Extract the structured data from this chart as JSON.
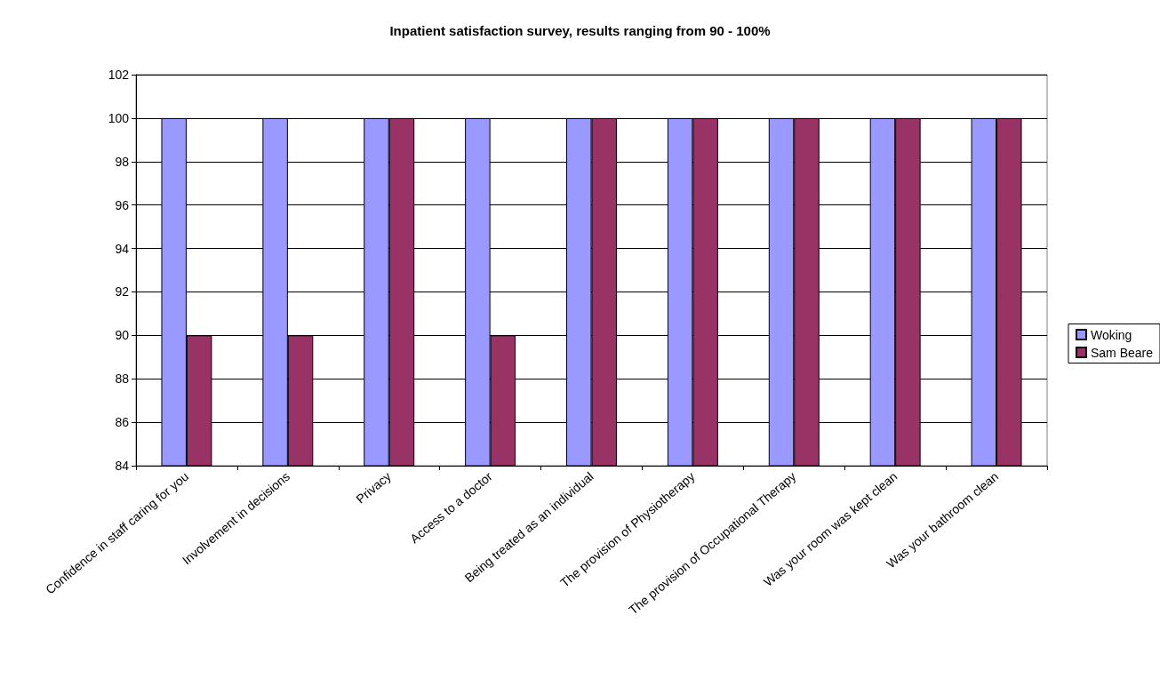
{
  "chart_data": {
    "type": "bar",
    "title": "Inpatient satisfaction survey, results ranging from 90 - 100%",
    "categories": [
      "Confidence in staff caring for you",
      "Involvement in decisions",
      "Privacy",
      "Access to a doctor",
      "Being treated as an individual",
      "The provision of Physiotherapy",
      "The provision of Occupational Therapy",
      "Was your room was kept clean",
      "Was your bathroom clean"
    ],
    "series": [
      {
        "name": "Woking",
        "color": "#9999ff",
        "values": [
          100,
          100,
          100,
          100,
          100,
          100,
          100,
          100,
          100
        ]
      },
      {
        "name": "Sam Beare",
        "color": "#993366",
        "values": [
          90,
          90,
          100,
          90,
          100,
          100,
          100,
          100,
          100
        ]
      }
    ],
    "ylim": [
      84,
      102
    ],
    "yticks": [
      84,
      86,
      88,
      90,
      92,
      94,
      96,
      98,
      100,
      102
    ],
    "grid": "y",
    "legend": "right"
  }
}
